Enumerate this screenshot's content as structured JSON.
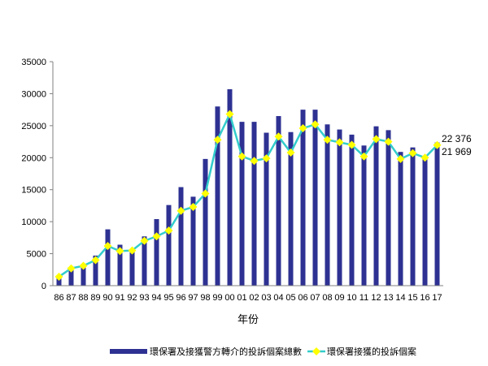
{
  "chart_data": {
    "type": "bar+line",
    "xlabel": "年份",
    "ylabel": "",
    "ylim": [
      0,
      35000
    ],
    "yticks": [
      0,
      5000,
      10000,
      15000,
      20000,
      25000,
      30000,
      35000
    ],
    "grid": false,
    "legend_position": "bottom",
    "categories": [
      "86",
      "87",
      "88",
      "89",
      "90",
      "91",
      "92",
      "93",
      "94",
      "95",
      "96",
      "97",
      "98",
      "99",
      "00",
      "01",
      "02",
      "03",
      "04",
      "05",
      "06",
      "07",
      "08",
      "09",
      "10",
      "11",
      "12",
      "13",
      "14",
      "15",
      "16",
      "17"
    ],
    "series": [
      {
        "name": "環保署及接獲警方轉介的投訴個案總數",
        "type": "bar",
        "color": "#2e3192",
        "values": [
          1500,
          2800,
          3000,
          4700,
          8800,
          6400,
          5500,
          7700,
          10400,
          12600,
          15400,
          13900,
          19800,
          28000,
          30700,
          25600,
          25600,
          23900,
          26500,
          24000,
          27500,
          27500,
          25200,
          24400,
          23600,
          21900,
          24900,
          24300,
          20900,
          21600,
          20200,
          22376
        ]
      },
      {
        "name": "環保署接獲的投訴個案",
        "type": "line",
        "color": "#33cccc",
        "marker_color": "#ffff00",
        "values": [
          1400,
          2700,
          3100,
          4000,
          6200,
          5400,
          5500,
          7000,
          7700,
          8600,
          11700,
          12300,
          14400,
          22800,
          26800,
          20200,
          19500,
          19900,
          23300,
          20800,
          24600,
          25200,
          22800,
          22400,
          22000,
          20200,
          22900,
          22500,
          19800,
          20700,
          20000,
          21969
        ]
      }
    ],
    "annotations": [
      "22 376",
      "21 969"
    ]
  }
}
